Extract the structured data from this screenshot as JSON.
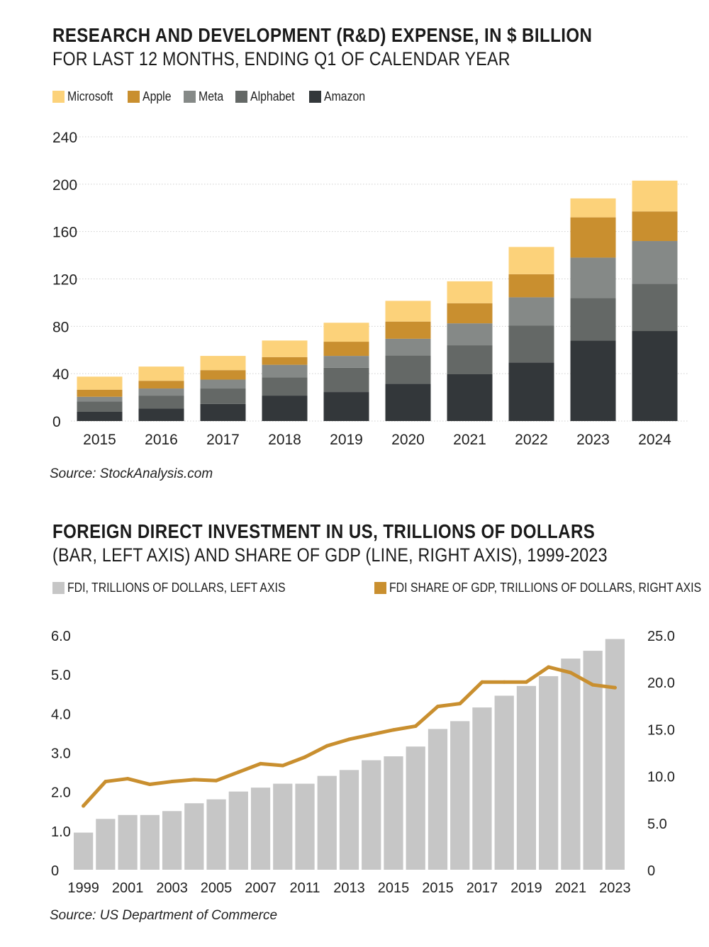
{
  "chart_data": [
    {
      "type": "bar",
      "stacked": true,
      "title": "RESEARCH AND DEVELOPMENT (R&D) EXPENSE, IN $ BILLION",
      "subtitle": "FOR LAST 12 MONTHS, ENDING Q1 OF CALENDAR YEAR",
      "categories": [
        "2015",
        "2016",
        "2017",
        "2018",
        "2019",
        "2020",
        "2021",
        "2022",
        "2023",
        "2024"
      ],
      "series": [
        {
          "name": "Amazon",
          "color": "#33373a",
          "values": [
            8,
            10.5,
            14.5,
            21.5,
            24.5,
            31.5,
            39.5,
            49.5,
            68,
            76
          ]
        },
        {
          "name": "Alphabet",
          "color": "#646866",
          "values": [
            8.5,
            11,
            13,
            15.5,
            20.5,
            24,
            24.5,
            31,
            36,
            40
          ]
        },
        {
          "name": "Meta",
          "color": "#858987",
          "values": [
            4,
            6,
            7.5,
            10.5,
            10,
            14,
            18.5,
            24,
            34,
            36
          ]
        },
        {
          "name": "Apple",
          "color": "#c98f2f",
          "values": [
            6,
            6.5,
            8,
            6.5,
            12,
            14.5,
            17,
            19.5,
            34,
            25
          ]
        },
        {
          "name": "Microsoft",
          "color": "#fcd27a",
          "values": [
            11,
            12,
            12,
            14,
            16,
            17.5,
            18.5,
            23,
            16,
            26
          ]
        }
      ],
      "legend_order": [
        "Microsoft",
        "Apple",
        "Meta",
        "Alphabet",
        "Amazon"
      ],
      "yticks": [
        "0",
        "40",
        "80",
        "120",
        "160",
        "200",
        "240"
      ],
      "ylim": [
        0,
        240
      ],
      "grid": true,
      "legend": "top-left",
      "source": "Source: StockAnalysis.com"
    },
    {
      "type": "bar+line",
      "title": "FOREIGN DIRECT INVESTMENT IN US, TRILLIONS OF DOLLARS",
      "subtitle": "(BAR, LEFT AXIS) AND SHARE OF GDP (LINE, RIGHT AXIS), 1999-2023",
      "bar_series": {
        "name": "FDI, TRILLIONS OF DOLLARS, LEFT AXIS",
        "color": "#c6c6c6",
        "values": [
          0.95,
          1.3,
          1.4,
          1.4,
          1.5,
          1.7,
          1.8,
          2.0,
          2.1,
          2.2,
          2.2,
          2.4,
          2.55,
          2.8,
          2.9,
          3.15,
          3.6,
          3.8,
          4.15,
          4.45,
          4.7,
          4.95,
          5.4,
          5.6,
          5.9
        ]
      },
      "line_series": {
        "name": "FDI SHARE OF GDP, TRILLIONS OF DOLLARS, RIGHT AXIS",
        "color": "#c98f2f",
        "values": [
          6.8,
          9.4,
          9.7,
          9.1,
          9.4,
          9.6,
          9.5,
          10.4,
          11.3,
          11.1,
          12.0,
          13.2,
          13.9,
          14.4,
          14.9,
          15.3,
          17.4,
          17.7,
          20.0,
          20.0,
          20.0,
          21.6,
          21.0,
          19.7,
          19.4
        ]
      },
      "xtick_labels": [
        "1999",
        "2001",
        "2003",
        "2005",
        "2007",
        "2011",
        "2013",
        "2015",
        "2015",
        "2017",
        "2019",
        "2021",
        "2023"
      ],
      "yticks_left": [
        "0",
        "1.0",
        "2.0",
        "3.0",
        "4.0",
        "5.0",
        "6.0"
      ],
      "yticks_right": [
        "0",
        "5.0",
        "10.0",
        "15.0",
        "20.0",
        "25.0"
      ],
      "ylim_left": [
        0,
        6
      ],
      "ylim_right": [
        0,
        25
      ],
      "legend": "top-left",
      "source": "Source: US Department of Commerce"
    }
  ]
}
